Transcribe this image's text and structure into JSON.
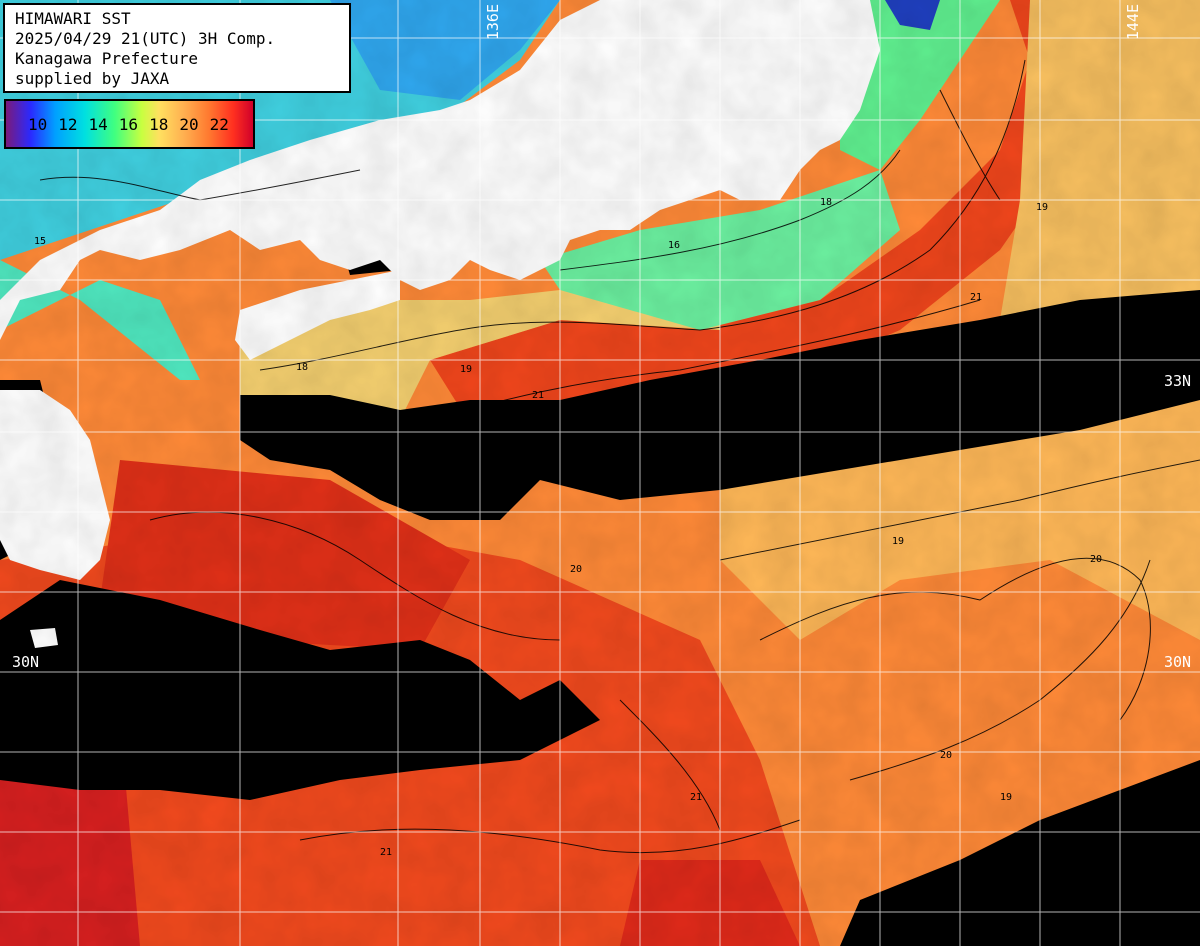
{
  "info": {
    "line1": "HIMAWARI SST",
    "line2": "2025/04/29 21(UTC) 3H Comp.",
    "line3": "Kanagawa Prefecture",
    "line4": "supplied by JAXA"
  },
  "legend": {
    "ticks": [
      "10",
      "12",
      "14",
      "16",
      "18",
      "20",
      "22"
    ]
  },
  "grid_labels": {
    "lon_136": "136E",
    "lon_144": "144E",
    "lat_33": "33N",
    "lat_30_left": "30N",
    "lat_30_right": "30N"
  },
  "contour_labels": [
    "19",
    "18",
    "21",
    "20",
    "16",
    "15"
  ],
  "colors": {
    "land": "#ffffff",
    "no_data": "#000000",
    "grid": "#ffffff",
    "cold_water": "#3ab0ff",
    "cool_water": "#60f0a0",
    "mild_water": "#f8e070",
    "warm_water": "#ff9a40",
    "hot_water": "#ff4020",
    "very_hot_water": "#d8102a"
  }
}
